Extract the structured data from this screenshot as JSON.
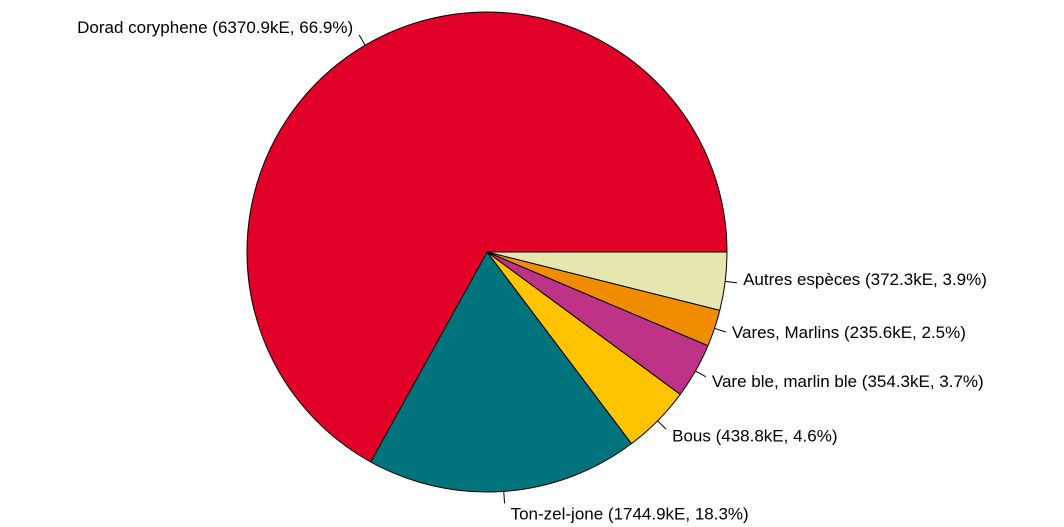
{
  "chart_data": {
    "type": "pie",
    "title": "",
    "unit": "kE",
    "direction": "clockwise",
    "start_angle_deg": 0,
    "slices": [
      {
        "label": "Autres espèces (372.3kE, 3.9%)",
        "value": 372.3,
        "percent": 3.9,
        "color": "#E6E6AF"
      },
      {
        "label": "Vares, Marlins (235.6kE, 2.5%)",
        "value": 235.6,
        "percent": 2.5,
        "color": "#F08C00"
      },
      {
        "label": "Vare ble, marlin ble (354.3kE, 3.7%)",
        "value": 354.3,
        "percent": 3.7,
        "color": "#BE3287"
      },
      {
        "label": "Bous  (438.8kE, 4.6%)",
        "value": 438.8,
        "percent": 4.6,
        "color": "#FFC300"
      },
      {
        "label": "Ton-zel-jone (1744.9kE, 18.3%)",
        "value": 1744.9,
        "percent": 18.3,
        "color": "#00737D"
      },
      {
        "label": "Dorad coryphene (6370.9kE, 66.9%)",
        "value": 6370.9,
        "percent": 66.9,
        "color": "#E10028"
      }
    ]
  }
}
